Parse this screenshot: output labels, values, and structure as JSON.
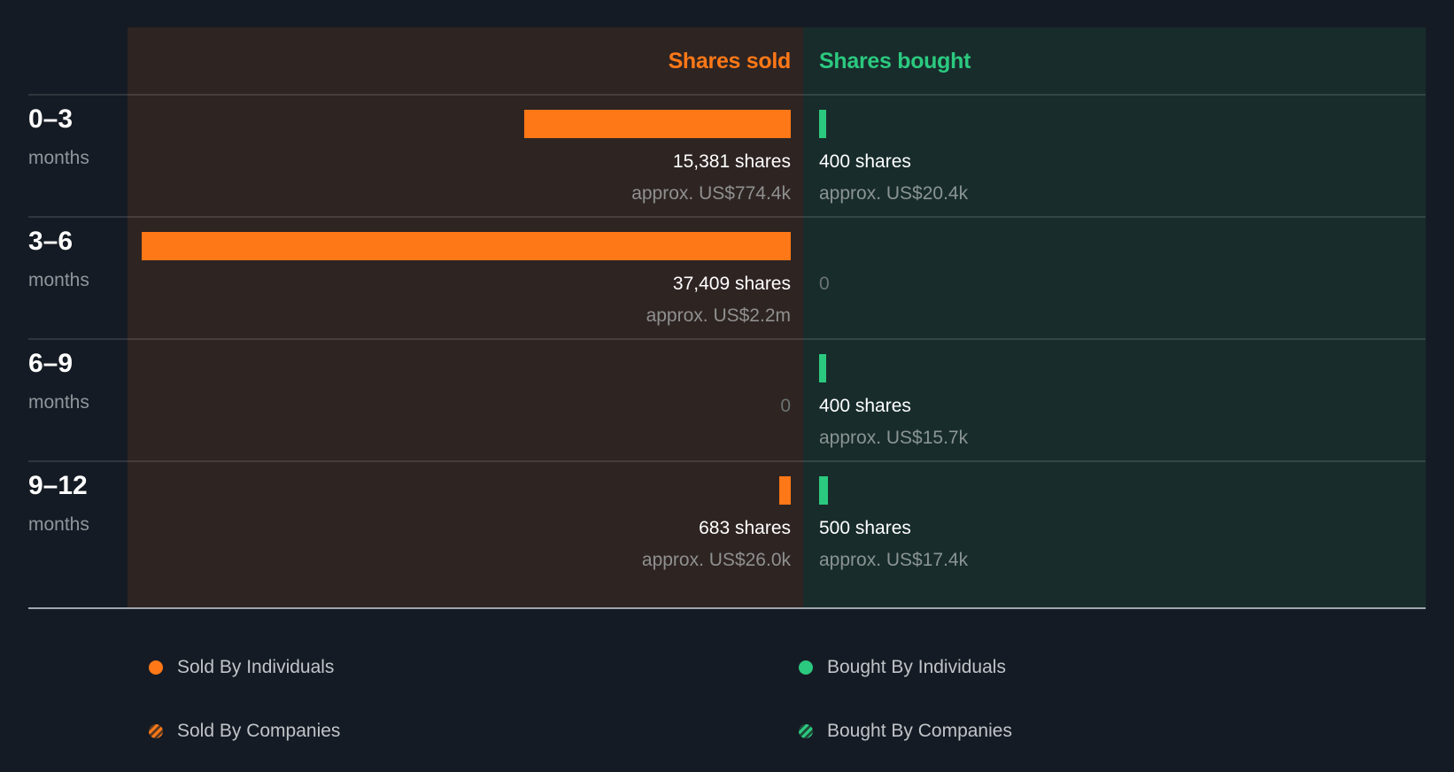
{
  "header": {
    "sold_label": "Shares sold",
    "bought_label": "Shares bought"
  },
  "colors": {
    "sold": "#fe7817",
    "bought": "#2bc97f",
    "background": "#151b24",
    "sold_panel": "#2e2422",
    "bought_panel": "#182c2c"
  },
  "rows": [
    {
      "period": "0–3",
      "unit": "months",
      "sold_shares": "15,381 shares",
      "sold_value": "approx. US$774.4k",
      "bought_shares": "400 shares",
      "bought_value": "approx. US$20.4k"
    },
    {
      "period": "3–6",
      "unit": "months",
      "sold_shares": "37,409 shares",
      "sold_value": "approx. US$2.2m",
      "bought_shares": "0",
      "bought_value": ""
    },
    {
      "period": "6–9",
      "unit": "months",
      "sold_shares": "0",
      "sold_value": "",
      "bought_shares": "400 shares",
      "bought_value": "approx. US$15.7k"
    },
    {
      "period": "9–12",
      "unit": "months",
      "sold_shares": "683 shares",
      "sold_value": "approx. US$26.0k",
      "bought_shares": "500 shares",
      "bought_value": "approx. US$17.4k"
    }
  ],
  "legend": {
    "sold_individuals": "Sold By Individuals",
    "sold_companies": "Sold By Companies",
    "bought_individuals": "Bought By Individuals",
    "bought_companies": "Bought By Companies"
  },
  "chart_data": {
    "type": "bar",
    "title": "",
    "xlabel": "",
    "ylabel": "",
    "categories": [
      "0–3 months",
      "3–6 months",
      "6–9 months",
      "9–12 months"
    ],
    "series": [
      {
        "name": "Shares sold",
        "color": "#fe7817",
        "values": [
          15381,
          37409,
          0,
          683
        ],
        "approx_value_usd": [
          "US$774.4k",
          "US$2.2m",
          null,
          "US$26.0k"
        ]
      },
      {
        "name": "Shares bought",
        "color": "#2bc97f",
        "values": [
          400,
          0,
          400,
          500
        ],
        "approx_value_usd": [
          "US$20.4k",
          null,
          "US$15.7k",
          "US$17.4k"
        ]
      }
    ],
    "legend": [
      "Sold By Individuals",
      "Bought By Individuals",
      "Sold By Companies",
      "Bought By Companies"
    ],
    "legend_position": "bottom",
    "orientation": "horizontal-diverging",
    "max_value": 37409,
    "grid": false
  }
}
